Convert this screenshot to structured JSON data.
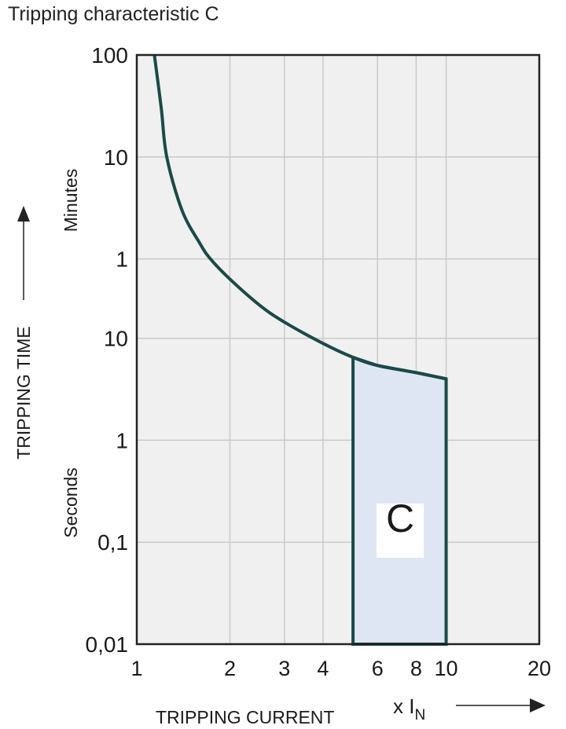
{
  "chart_data": {
    "type": "line",
    "title": "Tripping characteristic C",
    "xlabel": "TRIPPING CURRENT",
    "xunit": {
      "prefix": "x I",
      "subscript": "N"
    },
    "ylabel": "TRIPPING TIME",
    "y_unit_labels": {
      "upper": "Minutes",
      "lower": "Seconds"
    },
    "x_scale": "log",
    "y_scale": "log",
    "xlim": [
      1,
      20
    ],
    "ylim_seconds": [
      0.01,
      6000
    ],
    "grid": true,
    "x_ticks": [
      {
        "label": "1",
        "value": 1
      },
      {
        "label": "2",
        "value": 2
      },
      {
        "label": "3",
        "value": 3
      },
      {
        "label": "4",
        "value": 4
      },
      {
        "label": "6",
        "value": 6
      },
      {
        "label": "8",
        "value": 8
      },
      {
        "label": "10",
        "value": 10
      },
      {
        "label": "20",
        "value": 20
      }
    ],
    "y_ticks": [
      {
        "label": "100",
        "unit": "min",
        "seconds": 6000
      },
      {
        "label": "10",
        "unit": "min",
        "seconds": 600
      },
      {
        "label": "1",
        "unit": "min",
        "seconds": 60
      },
      {
        "label": "10",
        "unit": "s",
        "seconds": 10
      },
      {
        "label": "1",
        "unit": "s",
        "seconds": 1
      },
      {
        "label": "0,1",
        "unit": "s",
        "seconds": 0.1
      },
      {
        "label": "0,01",
        "unit": "s",
        "seconds": 0.01
      }
    ],
    "curve": {
      "x": [
        1.14,
        1.2,
        1.25,
        1.4,
        1.6,
        1.73,
        2,
        2.5,
        3,
        4,
        5,
        6,
        8,
        10
      ],
      "seconds": [
        6000,
        1800,
        600,
        180,
        85,
        60,
        38,
        21,
        14.4,
        8.9,
        6.5,
        5.4,
        4.6,
        4.0
      ]
    },
    "band": {
      "label": "C",
      "x_range": [
        5,
        10
      ],
      "bottom_seconds": 0.01
    },
    "colors": {
      "plot_bg": "#f0f0f0",
      "grid": "#c9c9ce",
      "curve": "#1b4a47",
      "band_fill": "#dfe6f3"
    }
  }
}
